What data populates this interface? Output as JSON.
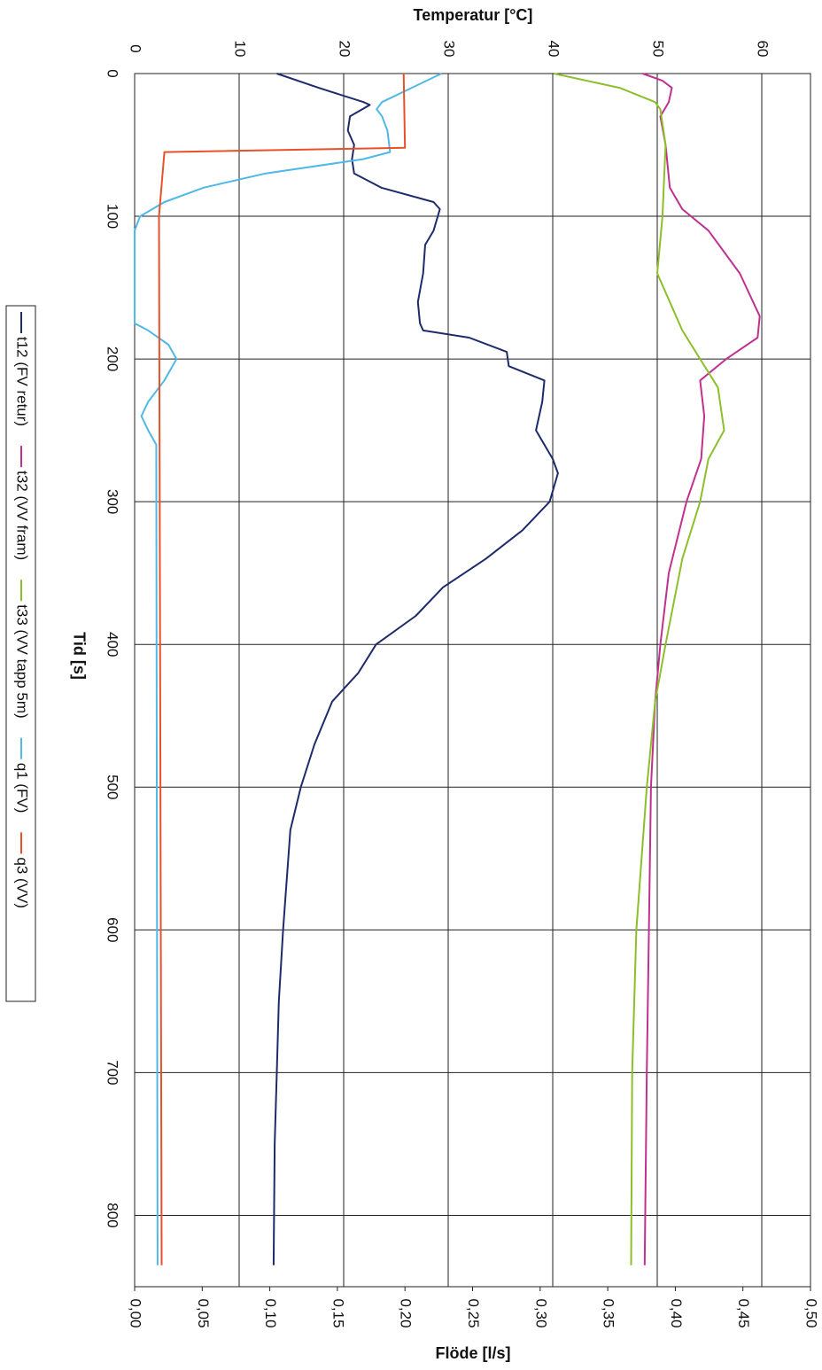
{
  "chart_data": {
    "type": "line",
    "title": "Temperatur [°C]",
    "x_label": "Tid [s]",
    "y2_label": "Flöde [l/s]",
    "xlim": [
      0,
      850
    ],
    "xticks": [
      0,
      100,
      200,
      300,
      400,
      500,
      600,
      700,
      800
    ],
    "ylim": [
      0,
      64.66
    ],
    "yticks": [
      0,
      10,
      20,
      30,
      40,
      50,
      60
    ],
    "y2lim": [
      0,
      0.5
    ],
    "y2ticks": [
      {
        "value": 0,
        "label": "0,00"
      },
      {
        "value": 0.05,
        "label": "0,05"
      },
      {
        "value": 0.1,
        "label": "0,10"
      },
      {
        "value": 0.15,
        "label": "0,15"
      },
      {
        "value": 0.2,
        "label": "0,20"
      },
      {
        "value": 0.25,
        "label": "0,25"
      },
      {
        "value": 0.3,
        "label": "0,30"
      },
      {
        "value": 0.35,
        "label": "0,35"
      },
      {
        "value": 0.4,
        "label": "0,40"
      },
      {
        "value": 0.45,
        "label": "0,45"
      },
      {
        "value": 0.5,
        "label": "0,50"
      }
    ],
    "grid": true,
    "legend": "left",
    "series": [
      {
        "name": "t12 (FV retur)",
        "color": "#1f2a6b",
        "x": [
          0,
          10,
          20,
          22,
          30,
          40,
          50,
          60,
          70,
          80,
          90,
          95,
          100,
          110,
          120,
          140,
          160,
          175,
          180,
          185,
          195,
          205,
          215,
          230,
          250,
          270,
          280,
          300,
          320,
          340,
          360,
          380,
          400,
          420,
          440,
          470,
          500,
          530,
          600,
          650,
          700,
          750,
          835
        ],
        "values": [
          13.6,
          17.6,
          21.9,
          22.5,
          20.6,
          20.4,
          21,
          20.8,
          21,
          23.6,
          28.6,
          29.2,
          29,
          28.6,
          27.8,
          27.6,
          27.1,
          27.3,
          27.6,
          32,
          35.6,
          35.8,
          39.2,
          39,
          38.4,
          40,
          40.5,
          39.7,
          37.1,
          33.6,
          29.5,
          26.9,
          23.1,
          21.4,
          18.9,
          17.2,
          15.9,
          14.9,
          14.2,
          13.8,
          13.6,
          13.4,
          13.3
        ]
      },
      {
        "name": "t32 (VV fram)",
        "color": "#c0308f",
        "x": [
          0,
          5,
          10,
          20,
          30,
          50,
          80,
          95,
          110,
          140,
          170,
          185,
          200,
          215,
          240,
          270,
          300,
          350,
          400,
          440,
          500,
          600,
          700,
          835
        ],
        "values": [
          48.6,
          50.5,
          51.4,
          51.1,
          50.3,
          50.8,
          51.2,
          52.4,
          54.9,
          57.9,
          59.8,
          59.6,
          56.6,
          54.1,
          54.5,
          54.2,
          52.8,
          51.1,
          50.3,
          49.8,
          49.4,
          49.2,
          49,
          48.8
        ]
      },
      {
        "name": "t33 (VV tapp 5m)",
        "color": "#8cbf2a",
        "x": [
          0,
          10,
          20,
          25,
          50,
          100,
          140,
          180,
          220,
          250,
          270,
          300,
          340,
          400,
          440,
          500,
          600,
          700,
          835
        ],
        "values": [
          40.1,
          46.4,
          49.8,
          50.3,
          50.8,
          50.5,
          50,
          52.4,
          55.8,
          56.4,
          54.9,
          54.1,
          52.4,
          50.8,
          49.8,
          49,
          48,
          47.6,
          47.5
        ]
      },
      {
        "name": "q1 (FV)",
        "color": "#4fb8e6",
        "axis": "y2",
        "x": [
          0,
          10,
          20,
          25,
          30,
          40,
          55,
          60,
          70,
          80,
          90,
          100,
          110,
          175,
          180,
          190,
          200,
          215,
          230,
          240,
          250,
          260,
          835
        ],
        "values": [
          0.227,
          0.205,
          0.183,
          0.179,
          0.183,
          0.187,
          0.189,
          0.169,
          0.097,
          0.051,
          0.022,
          0.004,
          0,
          0,
          0.01,
          0.025,
          0.031,
          0.022,
          0.01,
          0.005,
          0.01,
          0.016,
          0.017
        ]
      },
      {
        "name": "q3 (VV)",
        "color": "#e8502a",
        "axis": "y2",
        "x": [
          0,
          52,
          55,
          100,
          835
        ],
        "values": [
          0.199,
          0.2,
          0.022,
          0.018,
          0.02
        ]
      }
    ]
  }
}
